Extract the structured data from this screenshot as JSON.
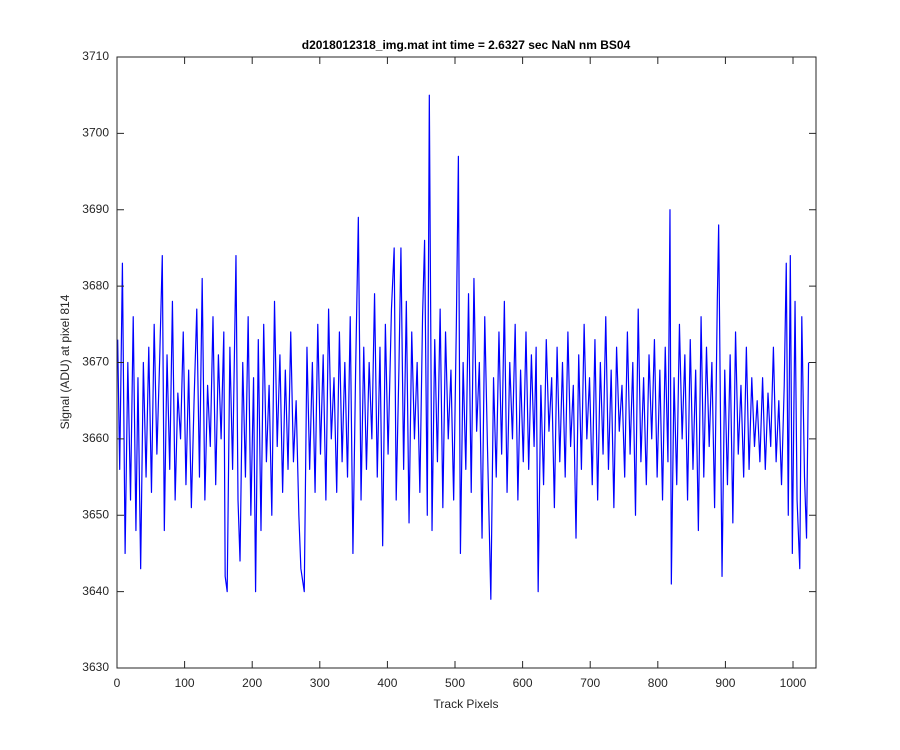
{
  "chart_data": {
    "type": "line",
    "title": "d2018012318_img.mat int time = 2.6327 sec  NaN nm BS04",
    "x_label": "Track Pixels",
    "y_label": "Signal (ADU) at pixel 814",
    "xlim": [
      0,
      1034
    ],
    "ylim": [
      3630,
      3710
    ],
    "xticks": [
      0,
      100,
      200,
      300,
      400,
      500,
      600,
      700,
      800,
      900,
      1000
    ],
    "yticks": [
      3630,
      3640,
      3650,
      3660,
      3670,
      3680,
      3690,
      3700,
      3710
    ],
    "series": [
      {
        "color": "#0000ff",
        "x": [
          1,
          4,
          8,
          12,
          16,
          20,
          24,
          28,
          31,
          35,
          39,
          43,
          47,
          51,
          55,
          59,
          63,
          67,
          70,
          74,
          78,
          82,
          86,
          90,
          94,
          98,
          102,
          106,
          110,
          114,
          118,
          122,
          126,
          130,
          134,
          138,
          142,
          146,
          150,
          154,
          158,
          160,
          163,
          167,
          171,
          176,
          179,
          182,
          186,
          190,
          194,
          198,
          202,
          205,
          209,
          213,
          217,
          221,
          225,
          229,
          233,
          237,
          241,
          245,
          249,
          253,
          257,
          261,
          265,
          269,
          272,
          277,
          281,
          285,
          289,
          293,
          297,
          301,
          305,
          309,
          313,
          317,
          321,
          325,
          329,
          333,
          337,
          341,
          345,
          349,
          353,
          357,
          361,
          365,
          369,
          373,
          377,
          381,
          385,
          389,
          393,
          397,
          401,
          406,
          410,
          413,
          417,
          420,
          424,
          428,
          432,
          436,
          440,
          444,
          448,
          452,
          455,
          459,
          462,
          466,
          470,
          474,
          478,
          482,
          486,
          490,
          494,
          498,
          502,
          505,
          508,
          512,
          516,
          520,
          524,
          528,
          532,
          536,
          540,
          544,
          548,
          553,
          557,
          561,
          565,
          569,
          573,
          577,
          581,
          585,
          589,
          593,
          597,
          601,
          605,
          609,
          613,
          617,
          620,
          623,
          627,
          631,
          635,
          639,
          643,
          647,
          651,
          655,
          659,
          663,
          667,
          671,
          675,
          679,
          683,
          687,
          691,
          695,
          699,
          703,
          707,
          711,
          715,
          719,
          723,
          727,
          731,
          735,
          739,
          743,
          747,
          751,
          755,
          759,
          763,
          767,
          771,
          775,
          779,
          783,
          787,
          791,
          795,
          799,
          803,
          807,
          811,
          815,
          818,
          820,
          824,
          828,
          832,
          836,
          840,
          844,
          848,
          852,
          856,
          860,
          864,
          868,
          872,
          876,
          880,
          884,
          888,
          890,
          895,
          899,
          903,
          907,
          911,
          915,
          919,
          923,
          927,
          931,
          935,
          939,
          943,
          947,
          951,
          955,
          959,
          963,
          967,
          971,
          975,
          979,
          983,
          987,
          990,
          993,
          996,
          999,
          1003,
          1006,
          1010,
          1013,
          1017,
          1020,
          1023
        ],
        "values": [
          3673,
          3656,
          3683,
          3645,
          3670,
          3652,
          3676,
          3648,
          3668,
          3643,
          3670,
          3655,
          3672,
          3653,
          3675,
          3658,
          3670,
          3684,
          3648,
          3671,
          3656,
          3678,
          3652,
          3666,
          3660,
          3674,
          3654,
          3669,
          3651,
          3665,
          3677,
          3655,
          3681,
          3652,
          3667,
          3659,
          3676,
          3654,
          3671,
          3660,
          3674,
          3642,
          3640,
          3672,
          3656,
          3684,
          3652,
          3644,
          3670,
          3655,
          3676,
          3650,
          3668,
          3640,
          3673,
          3648,
          3675,
          3657,
          3667,
          3650,
          3678,
          3659,
          3671,
          3653,
          3669,
          3656,
          3674,
          3657,
          3665,
          3650,
          3643,
          3640,
          3672,
          3656,
          3670,
          3653,
          3675,
          3658,
          3671,
          3652,
          3677,
          3660,
          3668,
          3653,
          3674,
          3657,
          3670,
          3655,
          3676,
          3645,
          3669,
          3689,
          3652,
          3672,
          3656,
          3670,
          3660,
          3679,
          3655,
          3672,
          3646,
          3675,
          3658,
          3677,
          3685,
          3652,
          3669,
          3685,
          3656,
          3678,
          3649,
          3674,
          3660,
          3670,
          3653,
          3676,
          3686,
          3650,
          3705,
          3648,
          3673,
          3657,
          3677,
          3651,
          3674,
          3660,
          3669,
          3652,
          3675,
          3697,
          3645,
          3670,
          3656,
          3679,
          3653,
          3681,
          3661,
          3670,
          3647,
          3676,
          3659,
          3639,
          3668,
          3655,
          3674,
          3658,
          3678,
          3653,
          3670,
          3660,
          3675,
          3652,
          3669,
          3657,
          3674,
          3656,
          3671,
          3659,
          3672,
          3640,
          3667,
          3654,
          3673,
          3661,
          3668,
          3651,
          3672,
          3657,
          3670,
          3655,
          3674,
          3659,
          3667,
          3647,
          3671,
          3656,
          3675,
          3660,
          3668,
          3654,
          3673,
          3652,
          3670,
          3658,
          3676,
          3656,
          3669,
          3651,
          3672,
          3661,
          3667,
          3655,
          3674,
          3658,
          3670,
          3650,
          3677,
          3657,
          3668,
          3654,
          3671,
          3660,
          3673,
          3655,
          3669,
          3652,
          3672,
          3657,
          3690,
          3641,
          3668,
          3654,
          3675,
          3660,
          3671,
          3652,
          3673,
          3656,
          3669,
          3648,
          3676,
          3655,
          3672,
          3659,
          3670,
          3651,
          3678,
          3688,
          3642,
          3669,
          3654,
          3671,
          3649,
          3674,
          3658,
          3667,
          3655,
          3672,
          3656,
          3668,
          3659,
          3665,
          3657,
          3668,
          3656,
          3666,
          3659,
          3672,
          3657,
          3665,
          3654,
          3667,
          3683,
          3650,
          3684,
          3645,
          3678,
          3652,
          3643,
          3676,
          3655,
          3647,
          3670
        ]
      }
    ]
  }
}
